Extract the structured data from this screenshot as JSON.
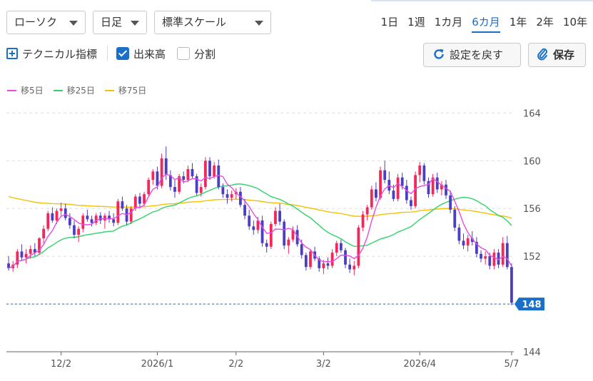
{
  "toolbar": {
    "chart_type": "ローソク",
    "timeframe": "日足",
    "scale": "標準スケール",
    "periods": [
      "1日",
      "1週",
      "1カ月",
      "6カ月",
      "1年",
      "2年",
      "10年"
    ],
    "active_period": "6カ月",
    "technical_label": "テクニカル指標",
    "volume_label": "出来高",
    "split_label": "分割",
    "reset_label": "設定を戻す",
    "save_label": "保存"
  },
  "legend": [
    {
      "label": "移5日",
      "color": "#e44ce4"
    },
    {
      "label": "移25日",
      "color": "#2fd36a"
    },
    {
      "label": "移75日",
      "color": "#f2c200"
    }
  ],
  "colors": {
    "up": "#f5275a",
    "down": "#4a3fc2",
    "accent": "#1a6fc9"
  },
  "chart_data": {
    "type": "candlestick",
    "y_ticks": [
      144,
      148,
      152,
      156,
      160,
      164
    ],
    "ylim": [
      144,
      164.5
    ],
    "grid": true,
    "x_tick_labels": [
      "12/2",
      "2026/1",
      "2/2",
      "3/2",
      "2026/4",
      "5/7"
    ],
    "x_tick_index": [
      12,
      34,
      52,
      72,
      94,
      115
    ],
    "current_price_label": "148",
    "current_price": 148.0,
    "ohlc": [
      [
        151.4,
        152.0,
        150.8,
        151.0
      ],
      [
        151.0,
        151.6,
        150.7,
        151.3
      ],
      [
        151.3,
        152.6,
        151.0,
        152.4
      ],
      [
        152.4,
        153.0,
        151.6,
        151.9
      ],
      [
        151.9,
        152.6,
        151.4,
        152.2
      ],
      [
        152.2,
        152.9,
        151.8,
        152.6
      ],
      [
        152.6,
        153.1,
        152.0,
        152.3
      ],
      [
        152.3,
        153.6,
        152.1,
        153.5
      ],
      [
        153.5,
        154.6,
        153.1,
        154.3
      ],
      [
        154.3,
        155.8,
        154.1,
        155.6
      ],
      [
        155.6,
        156.1,
        154.8,
        155.0
      ],
      [
        155.0,
        156.0,
        154.7,
        155.8
      ],
      [
        155.8,
        156.5,
        155.4,
        156.0
      ],
      [
        156.0,
        156.4,
        155.0,
        155.2
      ],
      [
        155.2,
        155.6,
        154.3,
        154.6
      ],
      [
        154.6,
        155.0,
        153.5,
        153.8
      ],
      [
        153.8,
        154.5,
        153.2,
        154.3
      ],
      [
        154.3,
        155.6,
        154.0,
        155.4
      ],
      [
        155.4,
        155.9,
        154.9,
        155.1
      ],
      [
        155.1,
        155.4,
        154.5,
        154.8
      ],
      [
        154.8,
        155.6,
        154.6,
        155.4
      ],
      [
        155.4,
        155.7,
        154.7,
        155.0
      ],
      [
        155.0,
        155.6,
        154.3,
        155.4
      ],
      [
        155.4,
        155.8,
        154.8,
        155.1
      ],
      [
        155.1,
        155.6,
        154.5,
        154.8
      ],
      [
        154.8,
        156.8,
        154.6,
        156.6
      ],
      [
        156.6,
        157.0,
        155.8,
        156.0
      ],
      [
        156.0,
        156.3,
        154.6,
        154.9
      ],
      [
        154.9,
        156.2,
        154.7,
        156.0
      ],
      [
        156.0,
        157.2,
        155.8,
        157.0
      ],
      [
        157.0,
        157.3,
        156.1,
        156.4
      ],
      [
        156.4,
        157.4,
        156.2,
        157.2
      ],
      [
        157.2,
        158.6,
        157.0,
        158.4
      ],
      [
        158.4,
        159.3,
        158.0,
        159.1
      ],
      [
        159.1,
        159.5,
        157.6,
        157.9
      ],
      [
        157.9,
        160.6,
        157.7,
        160.2
      ],
      [
        160.2,
        161.2,
        158.4,
        158.8
      ],
      [
        158.8,
        159.2,
        157.5,
        157.8
      ],
      [
        157.8,
        158.4,
        156.9,
        157.4
      ],
      [
        157.4,
        158.9,
        157.2,
        158.7
      ],
      [
        158.7,
        159.1,
        158.1,
        158.4
      ],
      [
        158.4,
        159.6,
        158.2,
        159.3
      ],
      [
        159.3,
        159.8,
        158.5,
        158.7
      ],
      [
        158.7,
        158.9,
        157.1,
        157.3
      ],
      [
        157.3,
        158.1,
        157.0,
        157.8
      ],
      [
        157.8,
        160.3,
        157.6,
        160.0
      ],
      [
        160.0,
        160.3,
        158.4,
        158.7
      ],
      [
        158.7,
        159.9,
        158.5,
        159.6
      ],
      [
        159.6,
        160.1,
        157.6,
        157.8
      ],
      [
        157.8,
        158.1,
        156.9,
        157.2
      ],
      [
        157.2,
        157.6,
        156.4,
        156.9
      ],
      [
        156.9,
        157.5,
        156.6,
        157.2
      ],
      [
        157.2,
        157.7,
        156.8,
        157.4
      ],
      [
        157.4,
        157.8,
        156.1,
        156.3
      ],
      [
        156.3,
        156.8,
        155.1,
        155.4
      ],
      [
        155.4,
        155.9,
        154.2,
        154.5
      ],
      [
        154.5,
        155.0,
        153.8,
        154.2
      ],
      [
        154.2,
        155.3,
        153.9,
        155.0
      ],
      [
        155.0,
        155.4,
        152.8,
        153.1
      ],
      [
        153.1,
        153.4,
        152.3,
        152.8
      ],
      [
        152.8,
        154.9,
        152.6,
        154.7
      ],
      [
        154.7,
        156.1,
        154.5,
        155.8
      ],
      [
        155.8,
        156.4,
        154.6,
        154.9
      ],
      [
        154.9,
        155.1,
        152.6,
        152.9
      ],
      [
        152.9,
        153.6,
        152.2,
        153.4
      ],
      [
        153.4,
        154.5,
        153.2,
        154.2
      ],
      [
        154.2,
        154.6,
        152.8,
        153.0
      ],
      [
        153.0,
        153.4,
        151.8,
        152.1
      ],
      [
        152.1,
        152.3,
        150.8,
        151.1
      ],
      [
        151.1,
        152.6,
        150.9,
        152.4
      ],
      [
        152.4,
        152.8,
        151.6,
        151.8
      ],
      [
        151.8,
        152.0,
        150.7,
        151.0
      ],
      [
        151.0,
        151.7,
        150.5,
        151.4
      ],
      [
        151.4,
        151.9,
        150.9,
        151.2
      ],
      [
        151.2,
        152.6,
        151.0,
        152.3
      ],
      [
        152.3,
        153.3,
        152.0,
        153.1
      ],
      [
        153.1,
        153.4,
        152.3,
        152.5
      ],
      [
        152.5,
        152.7,
        151.0,
        151.3
      ],
      [
        151.3,
        151.8,
        150.6,
        150.9
      ],
      [
        150.9,
        151.6,
        150.4,
        151.2
      ],
      [
        151.2,
        154.6,
        151.0,
        154.4
      ],
      [
        154.4,
        155.8,
        154.1,
        155.5
      ],
      [
        155.5,
        156.3,
        155.0,
        156.1
      ],
      [
        156.1,
        157.9,
        155.9,
        157.6
      ],
      [
        157.6,
        158.2,
        156.6,
        156.9
      ],
      [
        156.9,
        159.5,
        156.7,
        159.2
      ],
      [
        159.2,
        160.0,
        158.1,
        158.4
      ],
      [
        158.4,
        159.1,
        157.2,
        157.5
      ],
      [
        157.5,
        158.0,
        156.6,
        156.8
      ],
      [
        156.8,
        158.9,
        156.6,
        158.6
      ],
      [
        158.6,
        159.0,
        157.6,
        157.9
      ],
      [
        157.9,
        158.4,
        156.4,
        156.7
      ],
      [
        156.7,
        157.0,
        155.9,
        156.2
      ],
      [
        156.2,
        159.1,
        156.0,
        158.8
      ],
      [
        158.8,
        159.9,
        158.2,
        159.6
      ],
      [
        159.6,
        159.8,
        158.0,
        158.3
      ],
      [
        158.3,
        158.6,
        156.9,
        157.2
      ],
      [
        157.2,
        158.9,
        157.0,
        158.6
      ],
      [
        158.6,
        159.0,
        157.3,
        157.6
      ],
      [
        157.6,
        158.3,
        157.1,
        158.0
      ],
      [
        158.0,
        158.4,
        156.8,
        157.1
      ],
      [
        157.1,
        157.5,
        155.6,
        155.9
      ],
      [
        155.9,
        156.2,
        154.1,
        154.4
      ],
      [
        154.4,
        154.7,
        153.0,
        153.3
      ],
      [
        153.3,
        153.9,
        152.6,
        152.9
      ],
      [
        152.9,
        153.8,
        152.4,
        153.5
      ],
      [
        153.5,
        154.1,
        152.9,
        153.2
      ],
      [
        153.2,
        153.6,
        151.9,
        152.2
      ],
      [
        152.2,
        152.5,
        151.5,
        151.8
      ],
      [
        151.8,
        152.4,
        151.3,
        152.0
      ],
      [
        152.0,
        152.3,
        150.9,
        151.2
      ],
      [
        151.2,
        152.6,
        150.9,
        152.3
      ],
      [
        152.3,
        152.6,
        151.0,
        151.3
      ],
      [
        151.3,
        153.6,
        151.1,
        153.1
      ],
      [
        153.1,
        153.7,
        150.9,
        151.1
      ],
      [
        151.1,
        151.4,
        147.9,
        148.1
      ]
    ]
  }
}
